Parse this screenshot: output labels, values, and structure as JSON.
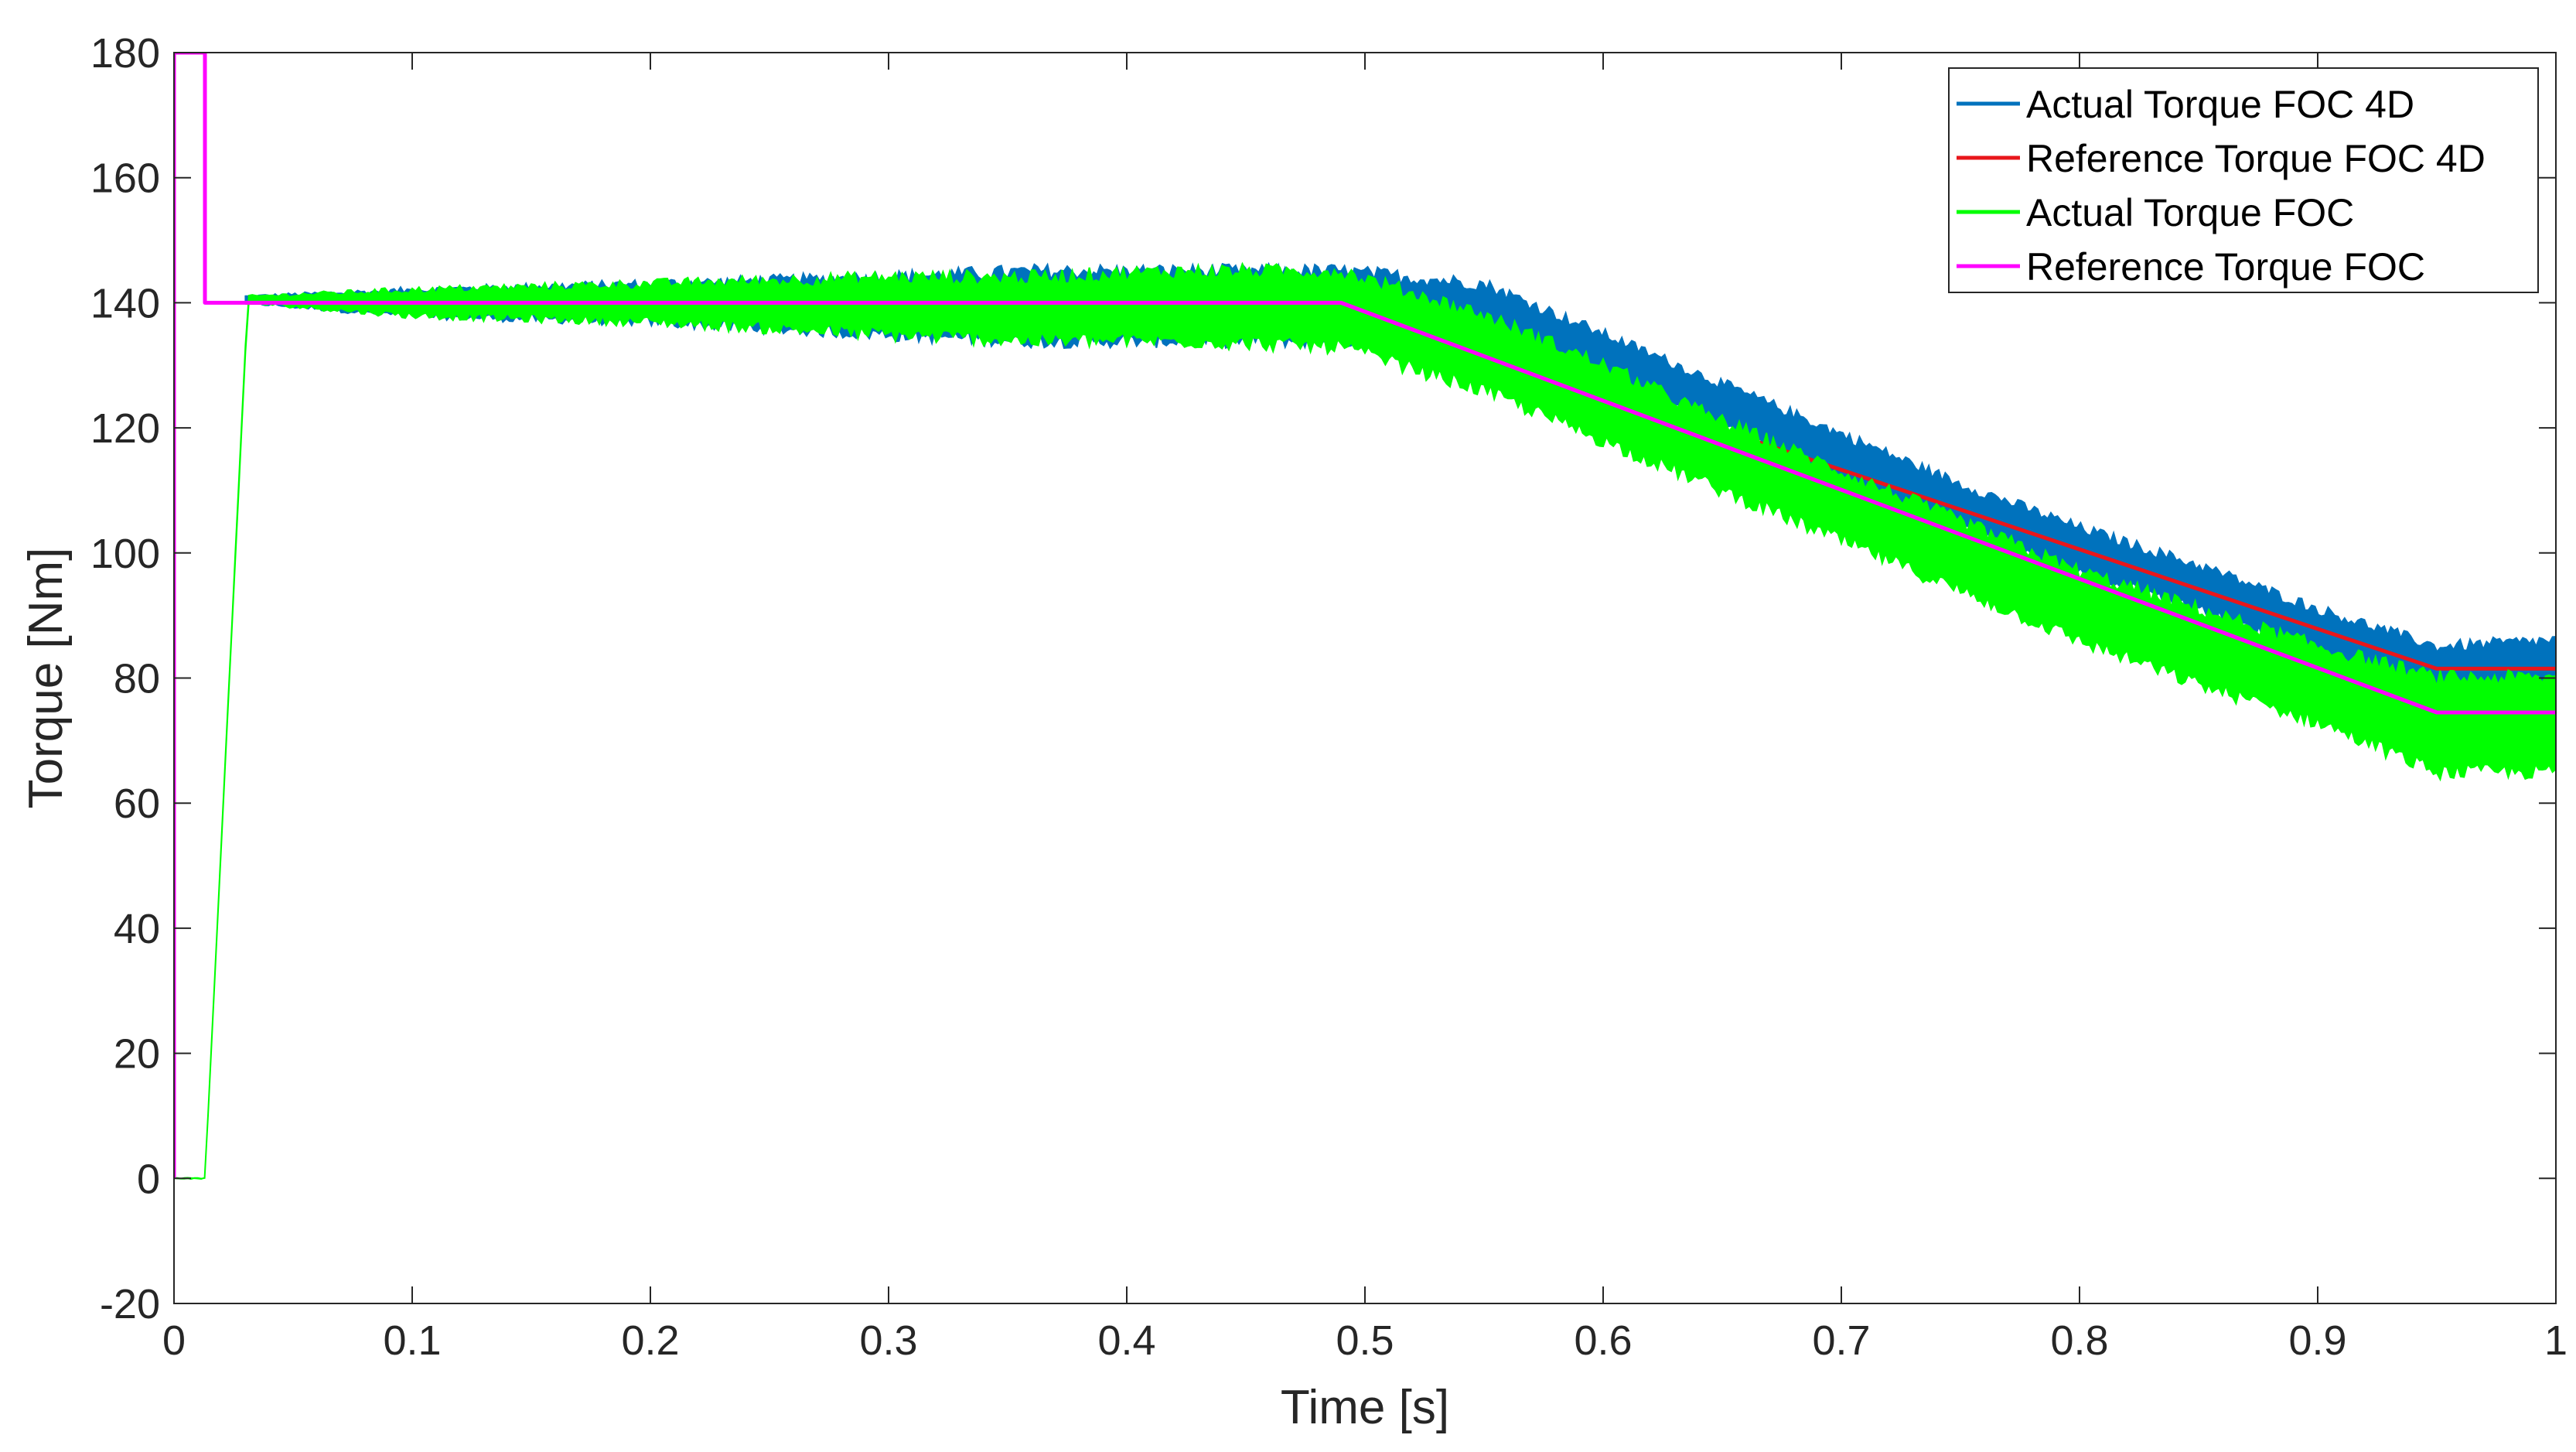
{
  "chart_data": {
    "type": "line",
    "title": "",
    "xlabel": "Time [s]",
    "ylabel": "Torque [Nm]",
    "xlim": [
      0,
      1
    ],
    "ylim": [
      -20,
      180
    ],
    "xticks": [
      0,
      0.1,
      0.2,
      0.3,
      0.4,
      0.5,
      0.6,
      0.7,
      0.8,
      0.9,
      1
    ],
    "xtick_labels": [
      "0",
      "0.1",
      "0.2",
      "0.3",
      "0.4",
      "0.5",
      "0.6",
      "0.7",
      "0.8",
      "0.9",
      "1"
    ],
    "yticks": [
      -20,
      0,
      20,
      40,
      60,
      80,
      100,
      120,
      140,
      160,
      180
    ],
    "ytick_labels": [
      "-20",
      "0",
      "20",
      "40",
      "60",
      "80",
      "100",
      "120",
      "140",
      "160",
      "180"
    ],
    "grid": false,
    "legend_position": "top-right",
    "series": [
      {
        "name": "Actual Torque FOC 4D",
        "color": "#0072BD",
        "style": "band",
        "x": [
          0.03,
          0.1,
          0.2,
          0.3,
          0.36,
          0.42,
          0.49,
          0.55,
          0.6,
          0.65,
          0.7,
          0.75,
          0.8,
          0.85,
          0.9,
          0.95,
          1.0
        ],
        "upper": [
          141,
          142,
          143,
          144,
          145,
          145,
          145,
          143,
          135,
          127,
          119,
          111,
          104,
          98,
          91,
          85,
          86
        ],
        "lower": [
          140,
          138,
          137,
          135,
          134,
          134,
          134,
          135,
          128,
          120,
          112,
          104,
          97,
          91,
          84,
          78,
          78
        ]
      },
      {
        "name": "Reference Torque FOC 4D",
        "color": "#E8161B",
        "style": "line",
        "x": [
          0.03,
          0.49,
          0.95,
          1.0
        ],
        "y": [
          140,
          140,
          81.5,
          81.5
        ]
      },
      {
        "name": "Actual Torque FOC",
        "color": "#00FF00",
        "style": "band",
        "x": [
          0,
          0.013,
          0.031,
          0.1,
          0.2,
          0.3,
          0.36,
          0.42,
          0.49,
          0.55,
          0.6,
          0.65,
          0.7,
          0.75,
          0.8,
          0.85,
          0.9,
          0.95,
          1.0
        ],
        "upper": [
          0,
          0,
          141,
          142,
          143,
          144,
          144,
          145,
          145,
          138,
          130,
          121,
          113,
          105,
          97,
          91,
          85,
          80,
          80
        ],
        "lower": [
          0,
          0,
          140,
          138,
          137,
          135,
          134,
          134,
          133,
          126,
          118,
          110,
          102,
          94,
          86,
          79,
          73,
          65,
          65
        ]
      },
      {
        "name": "Reference Torque FOC",
        "color": "#FF00FF",
        "style": "line",
        "x": [
          0,
          0,
          0.013,
          0.013,
          0.49,
          0.95,
          1.0
        ],
        "y": [
          0,
          180,
          180,
          140,
          140,
          74.5,
          74.5
        ]
      }
    ],
    "overlay_line": {
      "color": "#8E7D9E",
      "x": [
        0.03,
        0.49,
        0.95,
        1.0
      ],
      "y": [
        140,
        140,
        74.5,
        74.5
      ]
    }
  }
}
